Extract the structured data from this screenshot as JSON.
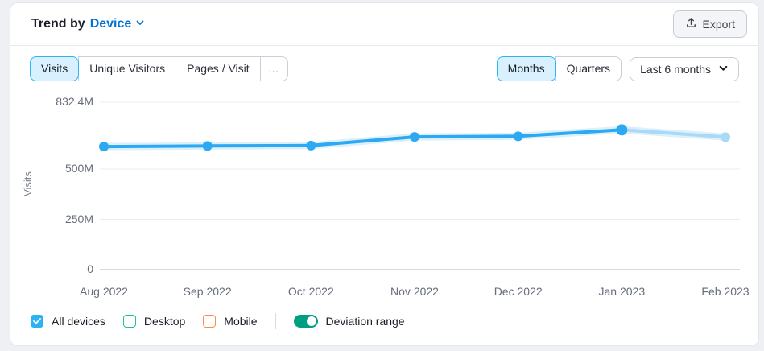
{
  "header": {
    "title_prefix": "Trend by",
    "title_link": "Device",
    "export_label": "Export"
  },
  "toolbar": {
    "metric_tabs": [
      {
        "label": "Visits",
        "selected": true
      },
      {
        "label": "Unique Visitors",
        "selected": false
      },
      {
        "label": "Pages / Visit",
        "selected": false
      },
      {
        "label": "…",
        "selected": false
      }
    ],
    "period_tabs": [
      {
        "label": "Months",
        "selected": true
      },
      {
        "label": "Quarters",
        "selected": false
      }
    ],
    "range_select": "Last 6 months"
  },
  "chart_data": {
    "type": "line",
    "title": "Trend by Device",
    "ylabel": "Visits",
    "x": [
      "Aug 2022",
      "Sep 2022",
      "Oct 2022",
      "Nov 2022",
      "Dec 2022",
      "Jan 2023",
      "Feb 2023"
    ],
    "series": [
      {
        "name": "All devices",
        "unit": "M visits",
        "values": [
          612,
          615,
          617,
          660,
          663,
          695,
          659
        ],
        "last_point_partial": true
      }
    ],
    "yticks": [
      {
        "label": "832.4M",
        "value": 832.4
      },
      {
        "label": "500M",
        "value": 500
      },
      {
        "label": "250M",
        "value": 250
      },
      {
        "label": "0",
        "value": 0
      }
    ],
    "ylim": [
      0,
      832.4
    ],
    "grid": "horizontal",
    "legend_position": "bottom",
    "deviation_range_on": true
  },
  "legend": {
    "items": [
      {
        "label": "All devices",
        "checked": true,
        "color": "#2bb3f3"
      },
      {
        "label": "Desktop",
        "checked": false,
        "color": "#1fbf9c"
      },
      {
        "label": "Mobile",
        "checked": false,
        "color": "#ff8a43"
      }
    ],
    "toggle": {
      "label": "Deviation range",
      "on": true,
      "color": "#009f81"
    }
  },
  "colors": {
    "line": "#2ca9f0",
    "line_light": "#a9d9f7",
    "line_halo": "#bfe3fa",
    "grid": "#e9ebef",
    "axis": "#c9ced7",
    "accent_selected_bg": "#d9f1fe",
    "accent_border": "#2bb3f3",
    "link_blue": "#0074d4"
  }
}
